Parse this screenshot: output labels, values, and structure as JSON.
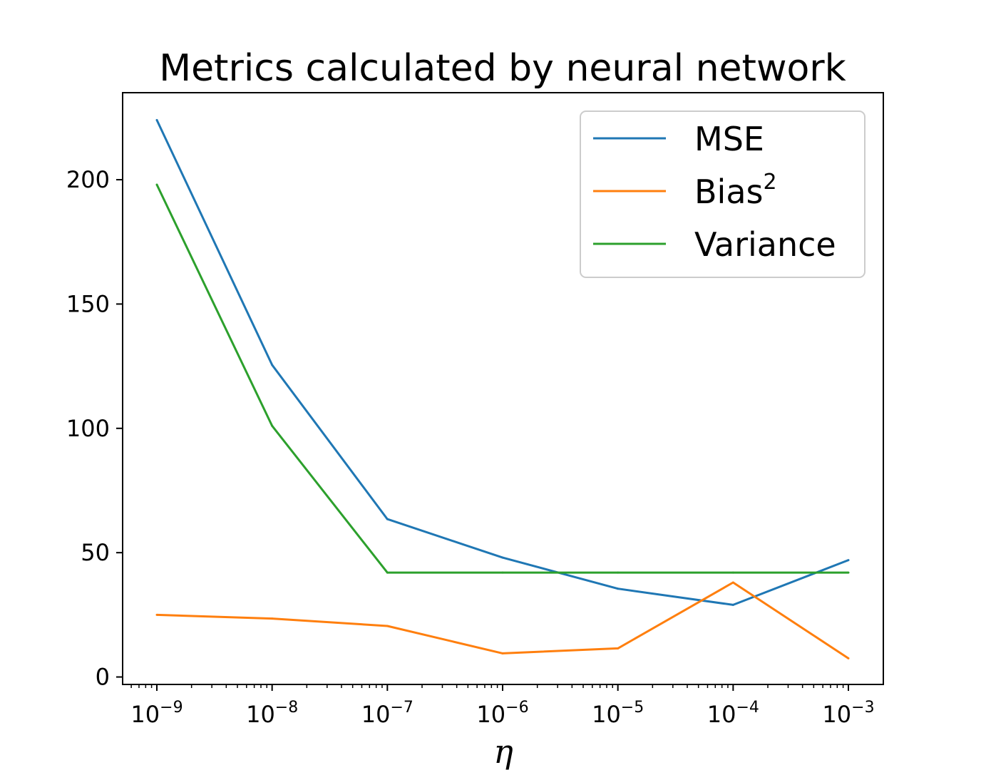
{
  "chart_data": {
    "type": "line",
    "title": "Metrics calculated by neural network",
    "xlabel": "η",
    "ylabel": "",
    "x_scale": "log",
    "x": [
      1e-09,
      1e-08,
      1e-07,
      1e-06,
      1e-05,
      0.0001,
      0.001
    ],
    "xticks": [
      {
        "value": 1e-09,
        "base": "10",
        "exp": "−9"
      },
      {
        "value": 1e-08,
        "base": "10",
        "exp": "−8"
      },
      {
        "value": 1e-07,
        "base": "10",
        "exp": "−7"
      },
      {
        "value": 1e-06,
        "base": "10",
        "exp": "−6"
      },
      {
        "value": 1e-05,
        "base": "10",
        "exp": "−5"
      },
      {
        "value": 0.0001,
        "base": "10",
        "exp": "−4"
      },
      {
        "value": 0.001,
        "base": "10",
        "exp": "−3"
      }
    ],
    "yticks": [
      0,
      50,
      100,
      150,
      200
    ],
    "ylim": [
      -3,
      235
    ],
    "grid": false,
    "legend_position": "top-right",
    "series": [
      {
        "name": "MSE",
        "name_sup": "",
        "color": "#1f77b4",
        "values": [
          224,
          125.5,
          63.5,
          48,
          35.5,
          29,
          47
        ]
      },
      {
        "name": "Bias",
        "name_sup": "2",
        "color": "#ff7f0e",
        "values": [
          25,
          23.5,
          20.5,
          9.5,
          11.5,
          38,
          7.5
        ]
      },
      {
        "name": "Variance",
        "name_sup": "",
        "color": "#2ca02c",
        "values": [
          198,
          101,
          42,
          42,
          42,
          42,
          42
        ]
      }
    ]
  }
}
